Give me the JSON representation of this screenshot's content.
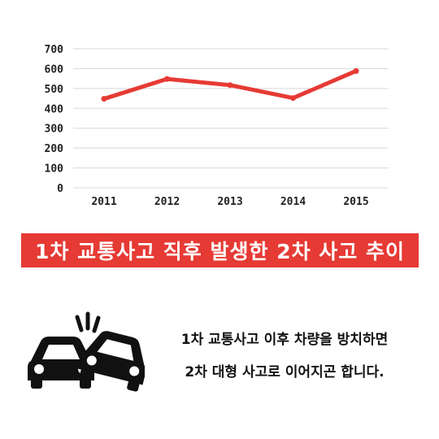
{
  "chart_data": {
    "type": "line",
    "categories": [
      "2011",
      "2012",
      "2013",
      "2014",
      "2015"
    ],
    "series": [
      {
        "values": [
          448,
          548,
          517,
          452,
          588
        ],
        "color": "#e63a34"
      }
    ],
    "yticks": [
      0,
      100,
      200,
      300,
      400,
      500,
      600,
      700
    ],
    "ylim": [
      0,
      700
    ],
    "grid": true,
    "title": "1차 교통사고 직후 발생한 2차 사고 추이"
  },
  "caption": {
    "line1": "1차 교통사고 이후 차량을 방치하면",
    "line2": "2차 대형 사고로 이어지곤 합니다."
  },
  "icons": {
    "crash": "car-crash-icon"
  }
}
